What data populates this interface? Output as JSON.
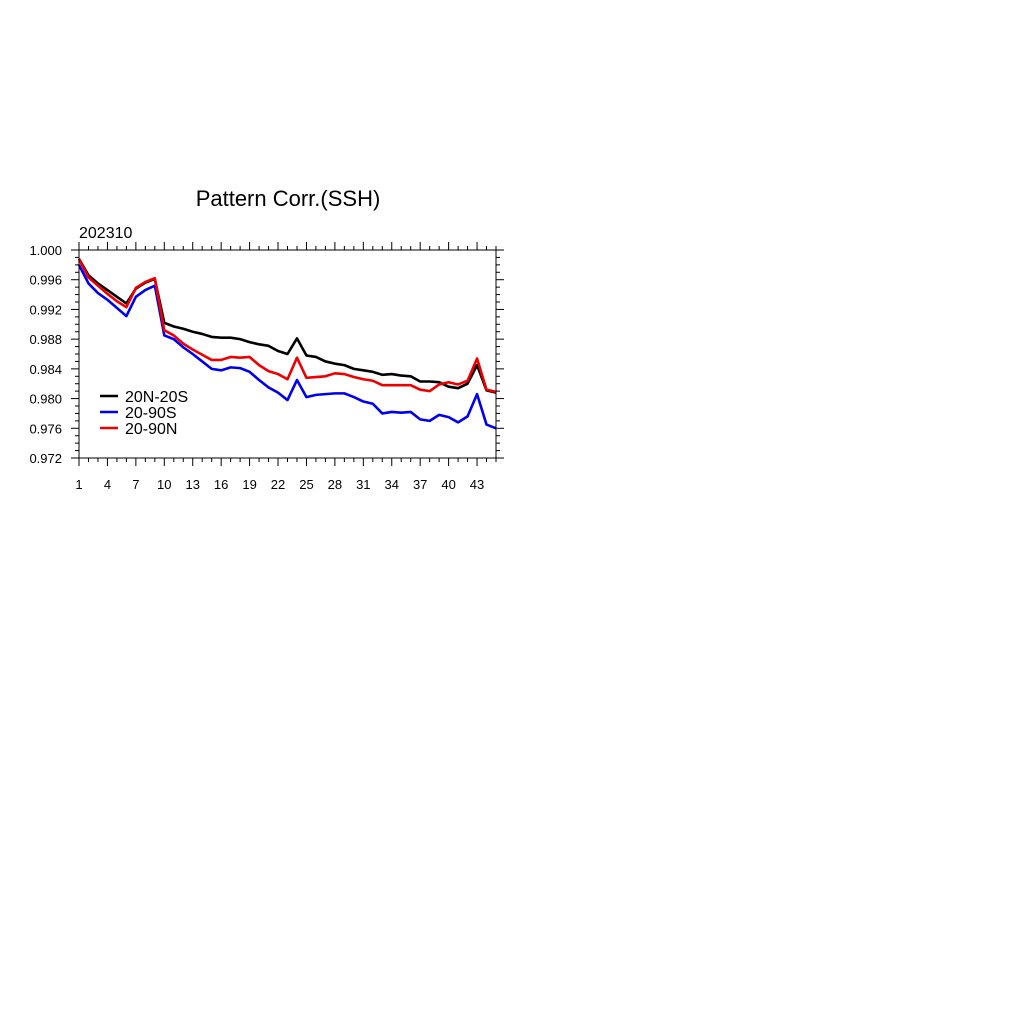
{
  "chart_data": {
    "type": "line",
    "title": "Pattern Corr.(SSH)",
    "subtitle": "202310",
    "xlabel": "",
    "ylabel": "",
    "xlim": [
      1,
      45
    ],
    "ylim": [
      0.972,
      1.0
    ],
    "x_ticks": [
      1,
      4,
      7,
      10,
      13,
      16,
      19,
      22,
      25,
      28,
      31,
      34,
      37,
      40,
      43
    ],
    "y_ticks": [
      "0.972",
      "0.976",
      "0.980",
      "0.984",
      "0.988",
      "0.992",
      "0.996",
      "1.000"
    ],
    "grid": false,
    "legend_position": "lower-left",
    "x": [
      1,
      2,
      3,
      4,
      5,
      6,
      7,
      8,
      9,
      10,
      11,
      12,
      13,
      14,
      15,
      16,
      17,
      18,
      19,
      20,
      21,
      22,
      23,
      24,
      25,
      26,
      27,
      28,
      29,
      30,
      31,
      32,
      33,
      34,
      35,
      36,
      37,
      38,
      39,
      40,
      41,
      42,
      43,
      44,
      45
    ],
    "series": [
      {
        "name": "20N-20S",
        "color": "#000000",
        "values": [
          0.9988,
          0.9966,
          0.9955,
          0.9946,
          0.9937,
          0.9928,
          0.9948,
          0.9956,
          0.9961,
          0.9902,
          0.9897,
          0.9894,
          0.989,
          0.9887,
          0.9883,
          0.9882,
          0.9882,
          0.988,
          0.9876,
          0.9873,
          0.9871,
          0.9864,
          0.986,
          0.9881,
          0.9858,
          0.9856,
          0.985,
          0.9847,
          0.9845,
          0.984,
          0.9838,
          0.9836,
          0.9832,
          0.9833,
          0.9831,
          0.983,
          0.9823,
          0.9823,
          0.9822,
          0.9816,
          0.9814,
          0.982,
          0.9845,
          0.9811,
          0.9808
        ]
      },
      {
        "name": "20-90S",
        "color": "#0000ee",
        "values": [
          0.998,
          0.9955,
          0.9942,
          0.9933,
          0.9922,
          0.9911,
          0.9937,
          0.9946,
          0.9952,
          0.9885,
          0.988,
          0.9869,
          0.986,
          0.985,
          0.984,
          0.9838,
          0.9842,
          0.9841,
          0.9836,
          0.9825,
          0.9815,
          0.9808,
          0.9798,
          0.9825,
          0.9802,
          0.9805,
          0.9806,
          0.9807,
          0.9807,
          0.9802,
          0.9796,
          0.9793,
          0.978,
          0.9782,
          0.9781,
          0.9782,
          0.9772,
          0.977,
          0.9778,
          0.9775,
          0.9768,
          0.9776,
          0.9806,
          0.9765,
          0.976
        ]
      },
      {
        "name": "20-90N",
        "color": "#ee0000",
        "values": [
          0.9988,
          0.9963,
          0.9952,
          0.9941,
          0.9931,
          0.9923,
          0.9949,
          0.9957,
          0.9962,
          0.9892,
          0.9885,
          0.9874,
          0.9866,
          0.9859,
          0.9852,
          0.9852,
          0.9856,
          0.9855,
          0.9856,
          0.9845,
          0.9837,
          0.9833,
          0.9826,
          0.9855,
          0.9828,
          0.9829,
          0.983,
          0.9834,
          0.9833,
          0.9829,
          0.9826,
          0.9824,
          0.9818,
          0.9818,
          0.9818,
          0.9818,
          0.9812,
          0.981,
          0.9819,
          0.9822,
          0.9819,
          0.9824,
          0.9854,
          0.9812,
          0.9809
        ]
      }
    ]
  }
}
